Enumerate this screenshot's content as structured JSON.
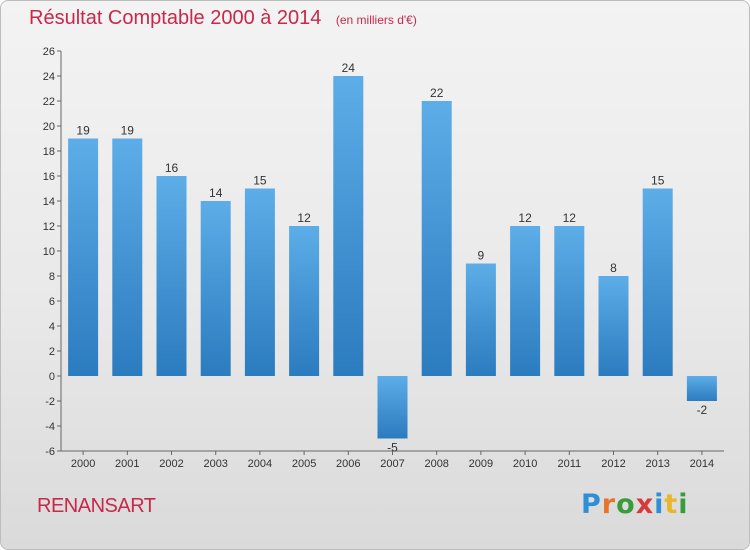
{
  "header": {
    "title": "Résultat Comptable 2000 à 2014",
    "subtitle": "(en milliers d'€)"
  },
  "footer": {
    "place": "RENANSART",
    "brand_letters": [
      "P",
      "r",
      "o",
      "x",
      "i",
      "t",
      "i"
    ],
    "brand_colors": [
      "#2e8fd6",
      "#e8742a",
      "#3a9b3a",
      "#d63a3a",
      "#2e8fd6",
      "#e8b82a",
      "#3a9b3a"
    ]
  },
  "colors": {
    "bar_top": "#5dade8",
    "bar_bottom": "#2b7bbf",
    "text": "#333333",
    "accent": "#c8284a"
  },
  "chart_data": {
    "type": "bar",
    "categories": [
      "2000",
      "2001",
      "2002",
      "2003",
      "2004",
      "2005",
      "2006",
      "2007",
      "2008",
      "2009",
      "2010",
      "2011",
      "2012",
      "2013",
      "2014"
    ],
    "values": [
      19,
      19,
      16,
      14,
      15,
      12,
      24,
      -5,
      22,
      9,
      12,
      12,
      8,
      15,
      -2
    ],
    "title": "Résultat Comptable 2000 à 2014",
    "subtitle": "(en milliers d'€)",
    "ylim": [
      -6,
      26
    ],
    "yticks": [
      -6,
      -4,
      -2,
      0,
      2,
      4,
      6,
      8,
      10,
      12,
      14,
      16,
      18,
      20,
      22,
      24,
      26
    ],
    "grid": false,
    "legend": "none"
  }
}
